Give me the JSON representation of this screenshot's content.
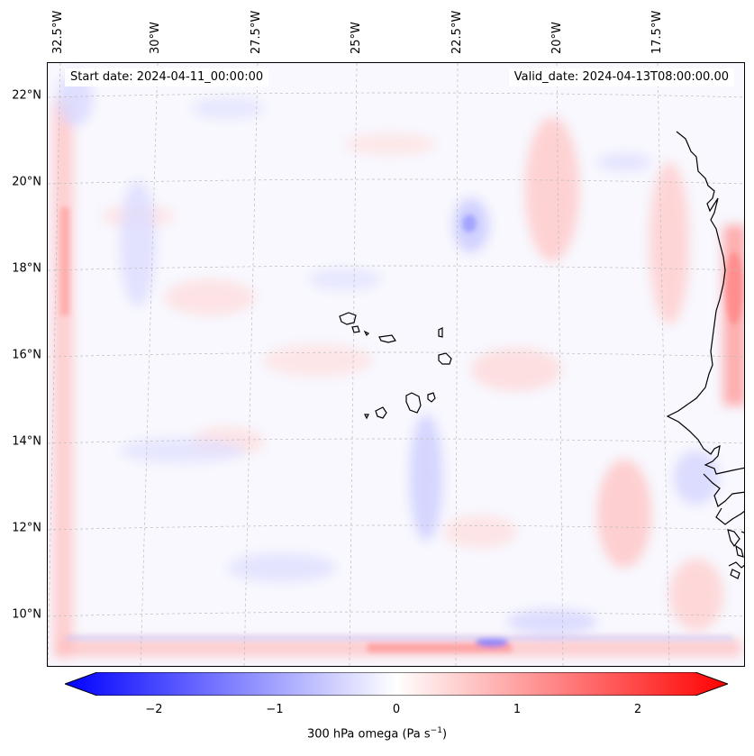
{
  "map": {
    "start_label": "Start date: 2024-04-11_00:00:00",
    "valid_label": "Valid_date: 2024-04-13T08:00:00.00",
    "lat_ticks": [
      "22°N",
      "20°N",
      "18°N",
      "16°N",
      "14°N",
      "12°N",
      "10°N"
    ],
    "lon_ticks": [
      "32.5°W",
      "30°W",
      "27.5°W",
      "25°W",
      "22.5°W",
      "20°W",
      "17.5°W"
    ],
    "field": "300 hPa omega",
    "colors": {
      "positive": "#ff0000",
      "negative": "#0000ff",
      "neutral": "#ffffff",
      "coastline": "#000000",
      "grid": "#b8b8b8"
    }
  },
  "colorbar": {
    "label_prefix": "300 hPa omega (Pa s",
    "label_exp": "−1",
    "label_suffix": ")",
    "ticks": [
      "−2",
      "−1",
      "0",
      "1",
      "2"
    ],
    "range": [
      -2.6,
      2.6
    ],
    "colormap": "bwr",
    "extend": "both"
  }
}
